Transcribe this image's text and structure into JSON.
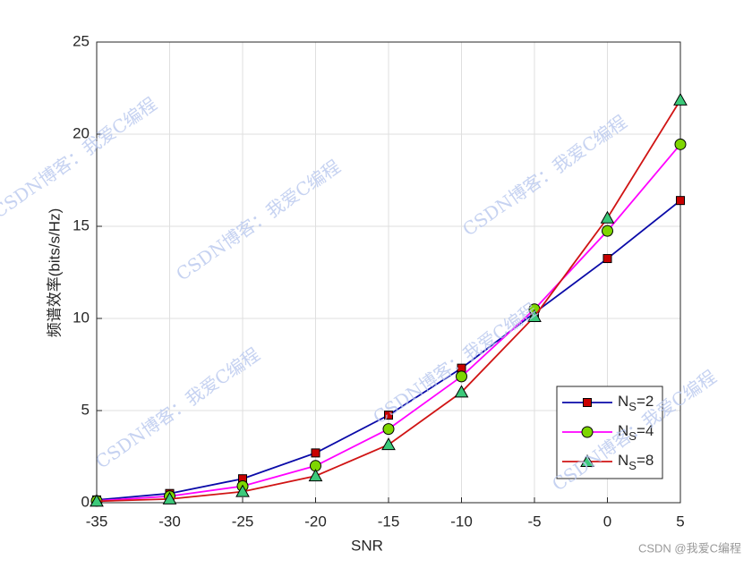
{
  "chart_data": {
    "type": "line",
    "xlabel": "SNR",
    "ylabel": "频谱效率(bits/s/Hz)",
    "x": [
      -35,
      -30,
      -25,
      -20,
      -15,
      -10,
      -5,
      0,
      5
    ],
    "series": [
      {
        "name": "NS=2",
        "color": "#0a0aa8",
        "marker": "square",
        "marker_color": "#c80000",
        "values": [
          0.15,
          0.5,
          1.3,
          2.7,
          4.75,
          7.3,
          10.3,
          13.25,
          16.4
        ]
      },
      {
        "name": "NS=4",
        "color": "#ff00ff",
        "marker": "circle",
        "marker_color": "#7ed600",
        "values": [
          0.1,
          0.35,
          0.9,
          2.0,
          4.0,
          6.85,
          10.5,
          14.75,
          19.45
        ]
      },
      {
        "name": "NS=8",
        "color": "#d01414",
        "marker": "triangle",
        "marker_color": "#3cc97a",
        "values": [
          0.08,
          0.2,
          0.6,
          1.45,
          3.15,
          6.0,
          10.1,
          15.45,
          21.85
        ]
      }
    ],
    "xlim": [
      -35,
      5
    ],
    "xticks": [
      -35,
      -30,
      -25,
      -20,
      -15,
      -10,
      -5,
      0,
      5
    ],
    "ylim": [
      0,
      25
    ],
    "yticks": [
      0,
      5,
      10,
      15,
      20,
      25
    ],
    "grid": true,
    "legend": "lower right",
    "watermark": "CSDN博客：我爱C编程",
    "footer": "CSDN @我爱C编程"
  }
}
